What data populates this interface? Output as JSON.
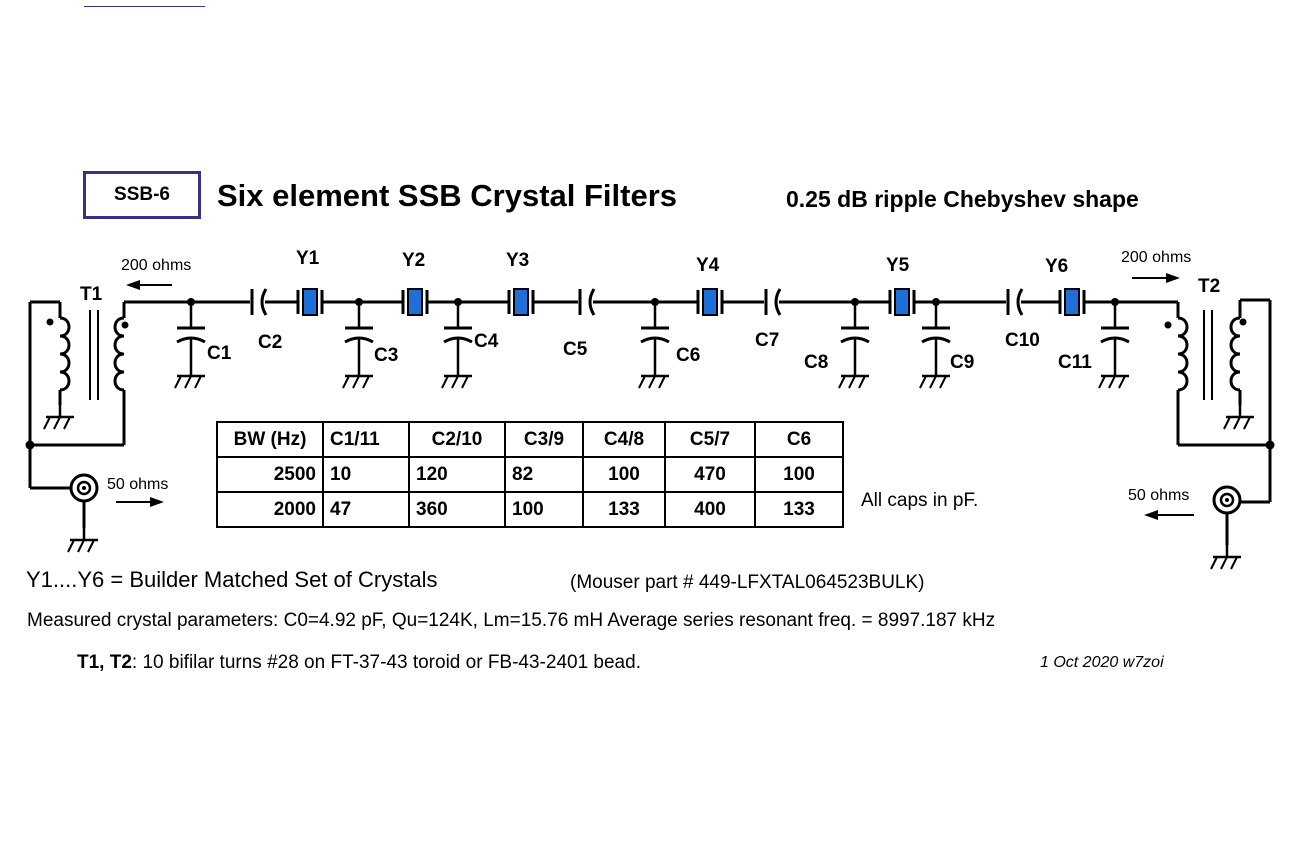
{
  "header": {
    "box_label": "SSB-6",
    "title": "Six element SSB Crystal Filters",
    "subtitle": "0.25 dB ripple Chebyshev shape"
  },
  "schematic": {
    "transformers": [
      "T1",
      "T2"
    ],
    "impedance_left": "200 ohms",
    "impedance_right": "200 ohms",
    "port_left": "50 ohms",
    "port_right": "50 ohms",
    "crystals": [
      "Y1",
      "Y2",
      "Y3",
      "Y4",
      "Y5",
      "Y6"
    ],
    "capacitors": [
      "C1",
      "C2",
      "C3",
      "C4",
      "C5",
      "C6",
      "C7",
      "C8",
      "C9",
      "C10",
      "C11"
    ],
    "crystal_color": "#1f6fd6"
  },
  "table": {
    "headers": [
      "BW (Hz)",
      "C1/11",
      "C2/10",
      "C3/9",
      "C4/8",
      "C5/7",
      "C6"
    ],
    "rows": [
      [
        "2500",
        "10",
        "120",
        "82",
        "100",
        "470",
        "100"
      ],
      [
        "2000",
        "47",
        "360",
        "100",
        "133",
        "400",
        "133"
      ]
    ],
    "note": "All caps in pF."
  },
  "notes": {
    "crystals_line": "Y1....Y6 = Builder Matched Set of Crystals",
    "mouser": "(Mouser part # 449-LFXTAL064523BULK)",
    "measured": "Measured crystal parameters:   C0=4.92 pF, Qu=124K,  Lm=15.76 mH   Average series resonant freq. = 8997.187 kHz",
    "transformer_label": "T1, T2",
    "transformer_text": ": 10  bifilar turns #28 on FT-37-43 toroid or FB-43-2401 bead.",
    "signature": "1 Oct 2020  w7zoi"
  }
}
